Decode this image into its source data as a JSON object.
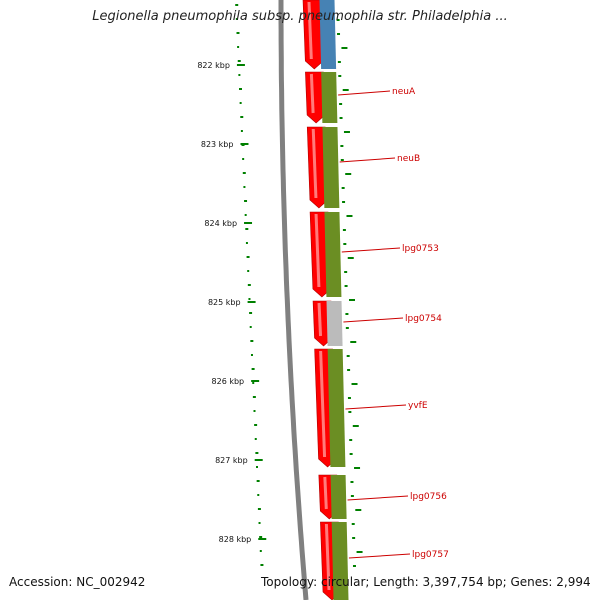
{
  "title": "Legionella pneumophila subsp. pneumophila str. Philadelphia ...",
  "footer": {
    "accession": "Accession: NC_002942",
    "topology": "Topology: circular; Length: 3,397,754 bp; Genes: 2,994"
  },
  "colors": {
    "cds_forward": "#ff0000",
    "cog_olive": "#6b8e23",
    "cog_blue": "#4682b4",
    "cog_gray": "#bbbbbb",
    "backbone": "#808080",
    "gc_skew_dots": "#008000",
    "gene_label": "#cc0000"
  },
  "tick_labels": [
    "822 kbp",
    "823 kbp",
    "824 kbp",
    "825 kbp",
    "826 kbp",
    "827 kbp",
    "828 kbp"
  ],
  "genes": [
    {
      "label": "neuA"
    },
    {
      "label": "neuB"
    },
    {
      "label": "lpg0753"
    },
    {
      "label": "lpg0754"
    },
    {
      "label": "yvfE"
    },
    {
      "label": "lpg0756"
    },
    {
      "label": "lpg0757"
    }
  ],
  "cog_segments": [
    "blue",
    "olive",
    "olive",
    "olive",
    "gray",
    "olive",
    "olive",
    "olive"
  ]
}
